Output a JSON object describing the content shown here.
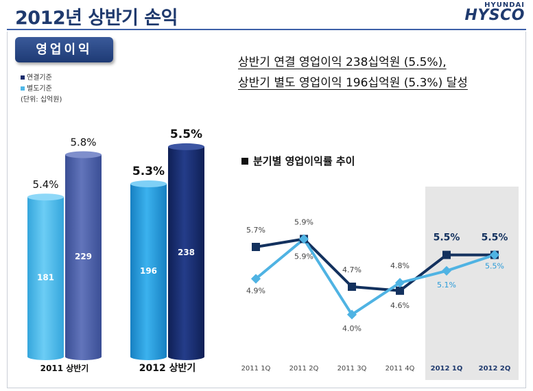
{
  "title": "2012년 상반기 손익",
  "logo": {
    "top": "HYUNDAI",
    "main": "HYSCO"
  },
  "section_tag": "영업이익",
  "legend": {
    "consolidated": "연결기준",
    "separate": "별도기준",
    "unit": "(단위: 십억원)"
  },
  "headline": {
    "line1": "상반기 연결 영업이익 238십억원 (5.5%),",
    "line2": "상반기 별도 영업이익 196십억원 (5.3%) 달성"
  },
  "subtitle": "분기별 영업이익률 추이",
  "colors": {
    "separate_light": "#4fb8e8",
    "separate_dark": "#1f8fd0",
    "consolidated_2011": "#4a5fa8",
    "consolidated_2012": "#1a2e6e",
    "line_consolidated": "#13315e",
    "line_separate": "#4fb3e3",
    "highlight_bg": "#e6e6e6"
  },
  "chart_data": [
    {
      "type": "bar",
      "title": "",
      "categories": [
        "2011 상반기",
        "2012 상반기"
      ],
      "series": [
        {
          "name": "별도기준",
          "values": [
            181,
            196
          ],
          "margins": [
            "5.4%",
            "5.3%"
          ]
        },
        {
          "name": "연결기준",
          "values": [
            229,
            238
          ],
          "margins": [
            "5.8%",
            "5.5%"
          ]
        }
      ]
    },
    {
      "type": "line",
      "title": "분기별 영업이익률 추이",
      "categories": [
        "2011 1Q",
        "2011 2Q",
        "2011 3Q",
        "2011 4Q",
        "2012 1Q",
        "2012 2Q"
      ],
      "highlight": [
        "2012 1Q",
        "2012 2Q"
      ],
      "series": [
        {
          "name": "연결기준",
          "values": [
            5.7,
            5.9,
            4.7,
            4.6,
            5.5,
            5.5
          ],
          "labels": [
            "5.7%",
            "5.9%",
            "4.7%",
            "4.6%",
            "5.5%",
            "5.5%"
          ]
        },
        {
          "name": "별도기준",
          "values": [
            4.9,
            5.9,
            4.0,
            4.8,
            5.1,
            5.5
          ],
          "labels": [
            "4.9%",
            "5.9%",
            "4.0%",
            "4.8%",
            "5.1%",
            "5.5%"
          ]
        }
      ]
    }
  ]
}
